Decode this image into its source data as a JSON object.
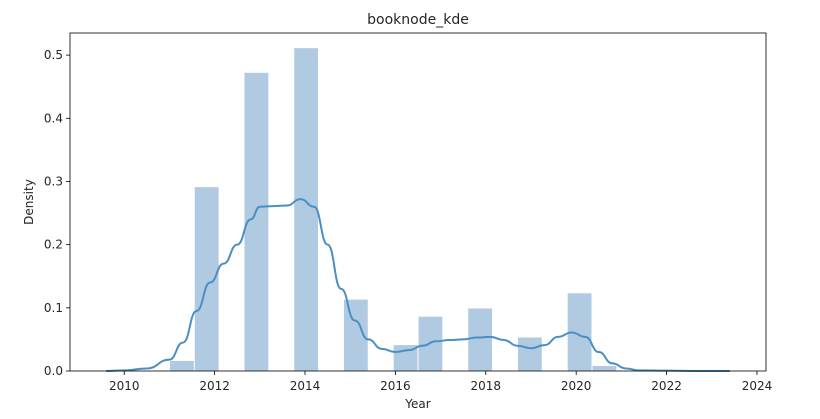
{
  "chart_data": {
    "type": "bar",
    "title": "booknode_kde",
    "xlabel": "Year",
    "ylabel": "Density",
    "xlim": [
      2008.8,
      2024.2
    ],
    "ylim": [
      0,
      0.535
    ],
    "xticks": [
      2010,
      2012,
      2014,
      2016,
      2018,
      2020,
      2022,
      2024
    ],
    "yticks": [
      0.0,
      0.1,
      0.2,
      0.3,
      0.4,
      0.5
    ],
    "xtick_labels": [
      "2010",
      "2012",
      "2014",
      "2016",
      "2018",
      "2020",
      "2022",
      "2024"
    ],
    "ytick_labels": [
      "0.0",
      "0.1",
      "0.2",
      "0.3",
      "0.4",
      "0.5"
    ],
    "grid": false,
    "histogram": {
      "bin_edges": [
        11.0,
        11.55,
        12.1,
        12.65,
        13.2,
        13.75,
        14.3,
        14.85,
        15.4,
        15.95,
        16.5,
        17.05,
        17.6,
        18.15,
        18.7,
        19.25,
        19.8,
        20.35,
        20.9
      ],
      "bins": [
        {
          "x0": 2011.0,
          "x1": 2011.55,
          "density": 0.016
        },
        {
          "x0": 2011.55,
          "x1": 2012.1,
          "density": 0.291
        },
        {
          "x0": 2012.65,
          "x1": 2013.2,
          "density": 0.472
        },
        {
          "x0": 2013.75,
          "x1": 2014.3,
          "density": 0.511
        },
        {
          "x0": 2014.85,
          "x1": 2015.4,
          "density": 0.113
        },
        {
          "x0": 2015.95,
          "x1": 2016.5,
          "density": 0.041
        },
        {
          "x0": 2016.5,
          "x1": 2017.05,
          "density": 0.086
        },
        {
          "x0": 2017.6,
          "x1": 2018.15,
          "density": 0.099
        },
        {
          "x0": 2018.7,
          "x1": 2019.25,
          "density": 0.053
        },
        {
          "x0": 2019.8,
          "x1": 2020.35,
          "density": 0.123
        },
        {
          "x0": 2020.35,
          "x1": 2020.9,
          "density": 0.008
        }
      ],
      "color": "#b0cbe1"
    },
    "kde": {
      "color": "#4a8fc3",
      "x": [
        2009.6,
        2010.0,
        2010.5,
        2011.0,
        2011.3,
        2011.6,
        2011.9,
        2012.2,
        2012.5,
        2012.8,
        2013.0,
        2013.3,
        2013.6,
        2013.9,
        2014.2,
        2014.5,
        2014.8,
        2015.1,
        2015.4,
        2015.7,
        2016.0,
        2016.3,
        2016.6,
        2016.9,
        2017.2,
        2017.5,
        2017.8,
        2018.1,
        2018.4,
        2018.7,
        2019.0,
        2019.3,
        2019.6,
        2019.9,
        2020.2,
        2020.5,
        2020.8,
        2021.1,
        2021.4,
        2022.0,
        2022.8,
        2023.4
      ],
      "y": [
        0.0,
        0.001,
        0.004,
        0.018,
        0.045,
        0.095,
        0.14,
        0.17,
        0.2,
        0.24,
        0.26,
        0.261,
        0.262,
        0.272,
        0.26,
        0.2,
        0.13,
        0.08,
        0.05,
        0.035,
        0.03,
        0.033,
        0.04,
        0.047,
        0.049,
        0.05,
        0.053,
        0.054,
        0.049,
        0.04,
        0.036,
        0.041,
        0.054,
        0.061,
        0.054,
        0.03,
        0.012,
        0.004,
        0.001,
        0.0005,
        0.0,
        0.0
      ]
    }
  }
}
